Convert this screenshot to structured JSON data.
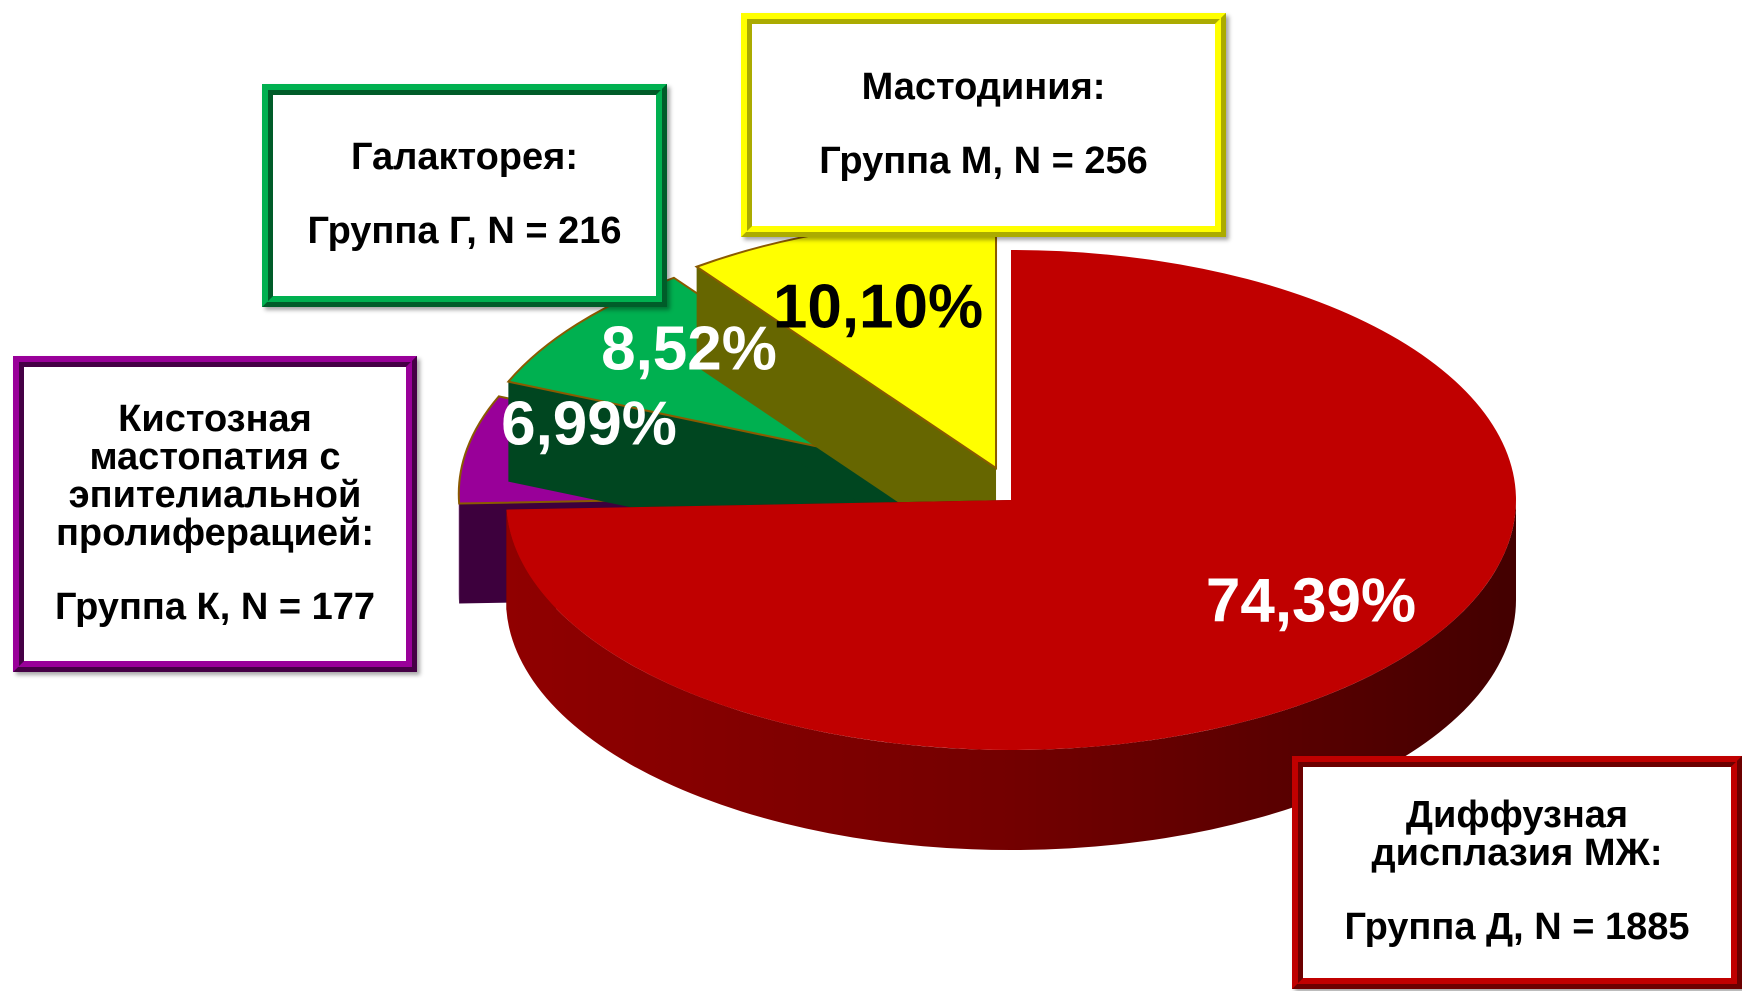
{
  "chart_data": {
    "type": "pie",
    "categories": [
      "Диффузная дисплазия МЖ:",
      "Кистозная мастопатия с эпителиальной пролиферацией:",
      "Галакторея:",
      "Мастодиния:"
    ],
    "groups": [
      "Группа Д, N = 1885",
      "Группа К, N = 177",
      "Группа Г, N = 216",
      "Группа М, N = 256"
    ],
    "values": [
      74.39,
      6.99,
      8.52,
      10.1
    ],
    "value_labels": [
      "74,39%",
      "6,99%",
      "8,52%",
      "10,10%"
    ],
    "colors": [
      "#c00000",
      "#990099",
      "#00b050",
      "#ffff00"
    ],
    "label_colors": [
      "#ffffff",
      "#ffffff",
      "#ffffff",
      "#000000"
    ]
  }
}
